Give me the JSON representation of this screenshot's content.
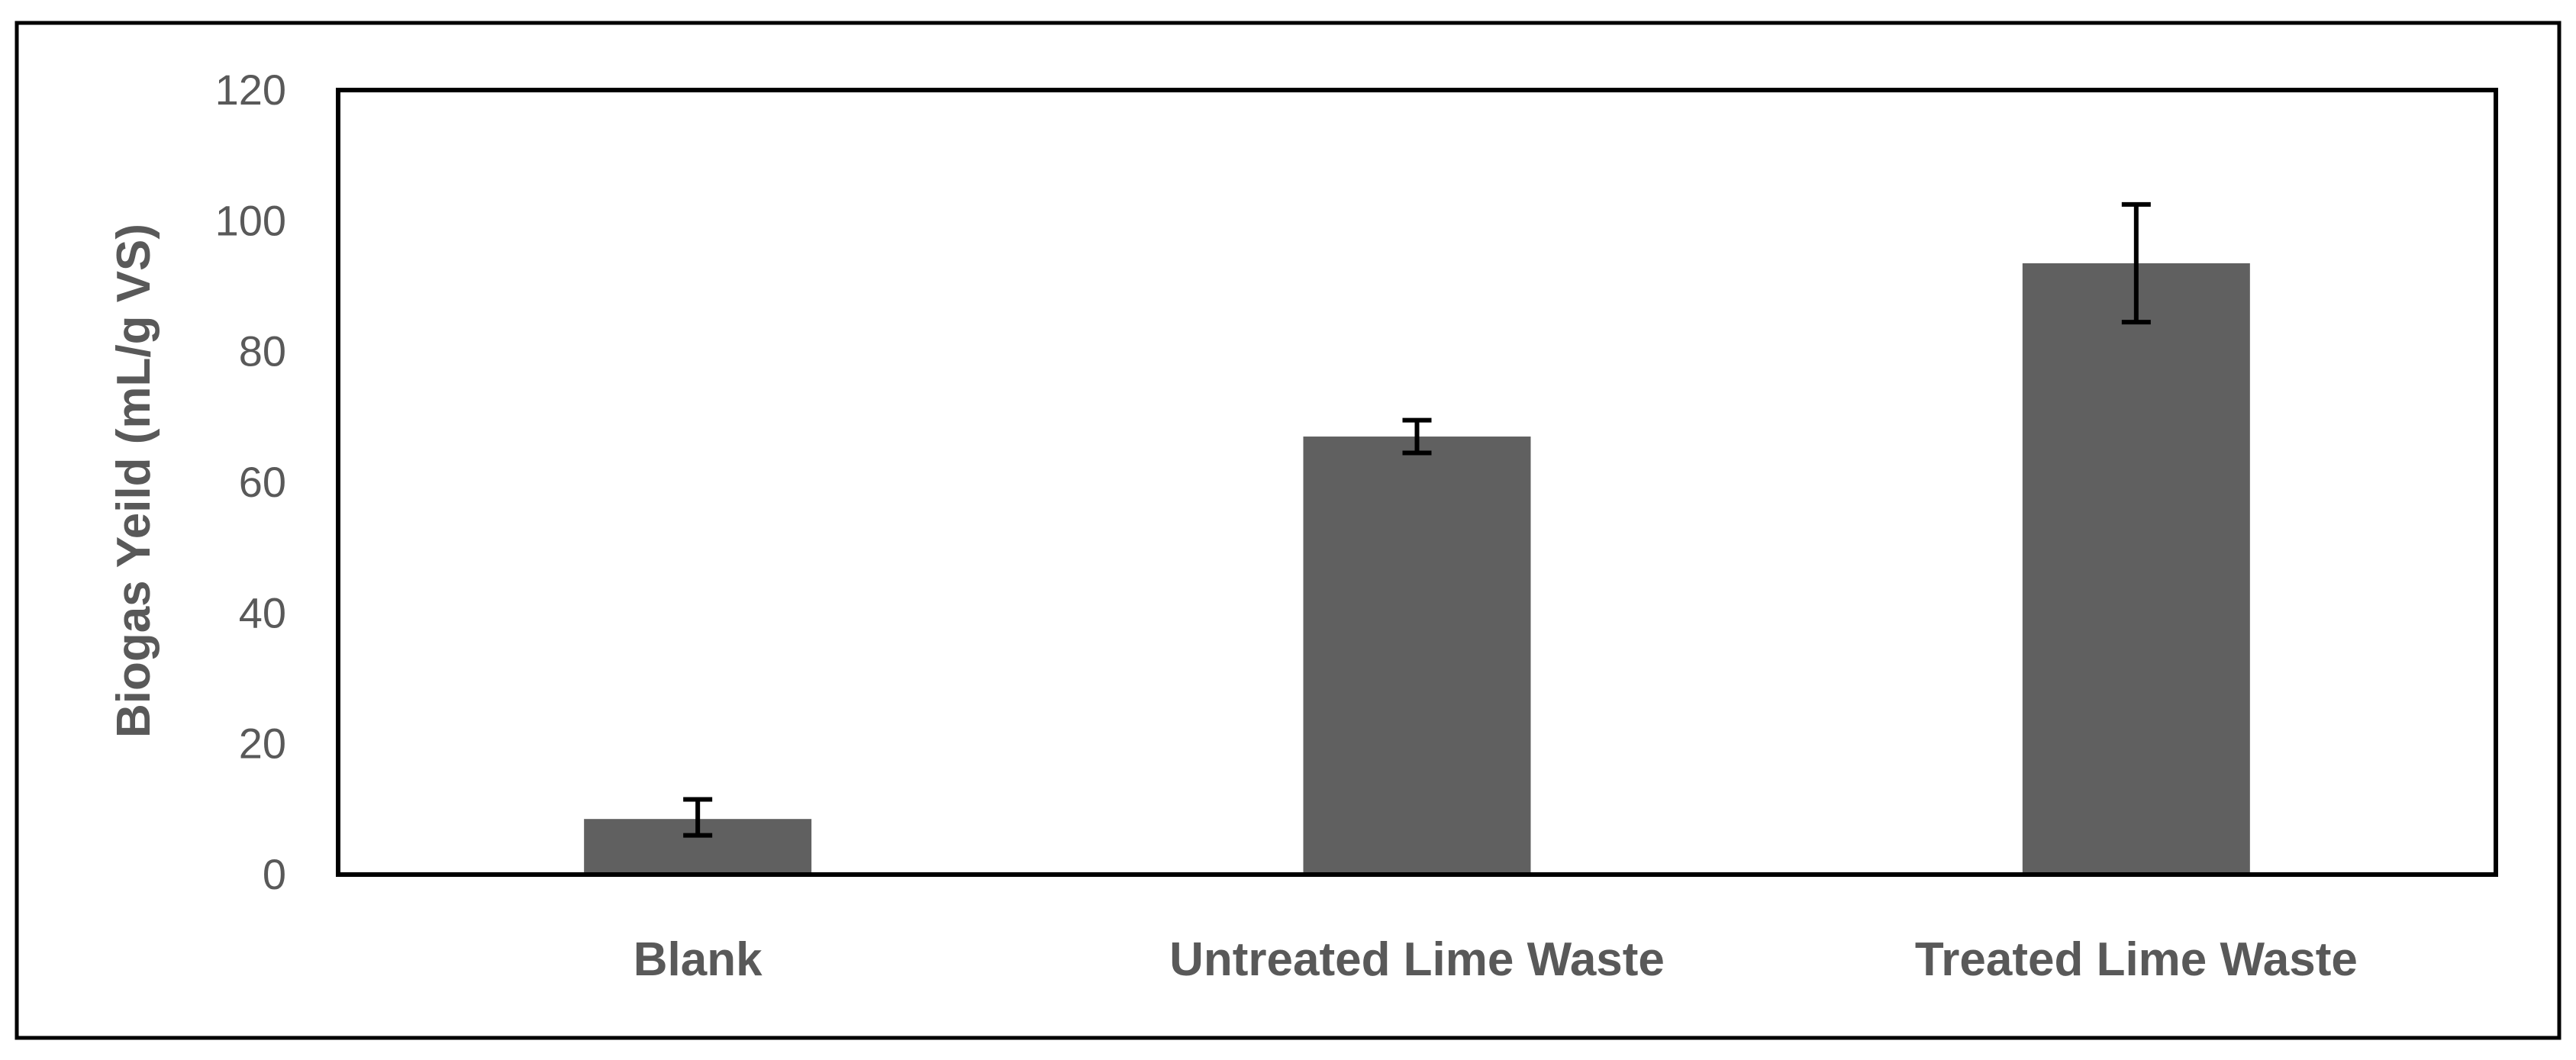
{
  "chart_data": {
    "type": "bar",
    "title": "",
    "xlabel": "",
    "ylabel": "Biogas Yeild (mL/g VS)",
    "ylim": [
      0,
      120
    ],
    "yticks": [
      0,
      20,
      40,
      60,
      80,
      100,
      120
    ],
    "categories": [
      "Blank",
      "Untreated Lime Waste",
      "Treated Lime Waste"
    ],
    "values": [
      8.5,
      67,
      93.5
    ],
    "error_low": [
      6,
      64.5,
      84.5
    ],
    "error_high": [
      11.5,
      69.5,
      102.5
    ],
    "bar_color": "#606060",
    "error_bar_color": "#000000",
    "grid": false,
    "legend": "none"
  }
}
